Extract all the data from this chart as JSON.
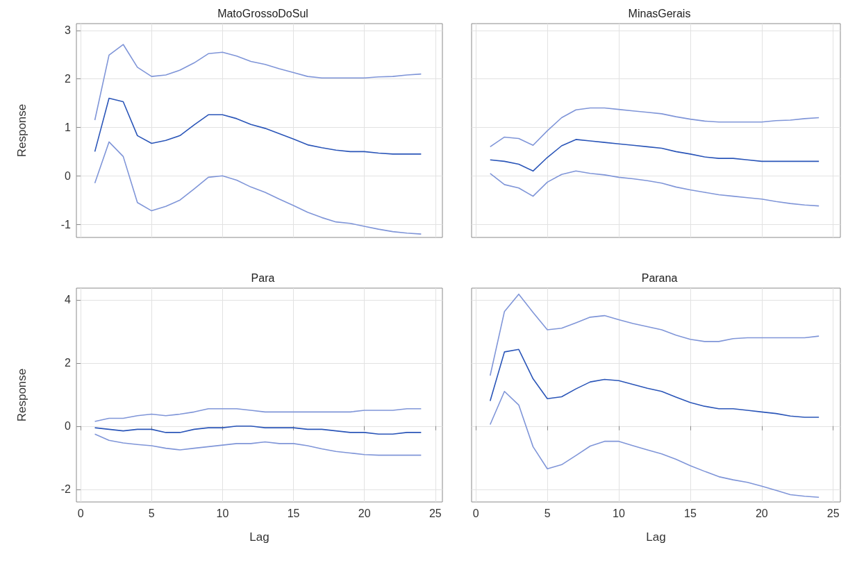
{
  "chart_data": [
    {
      "type": "line",
      "title": "MatoGrossoDoSul",
      "ylabel": "Response",
      "x": [
        1,
        2,
        3,
        4,
        5,
        6,
        7,
        8,
        9,
        10,
        11,
        12,
        13,
        14,
        15,
        16,
        17,
        18,
        19,
        20,
        21,
        22,
        23,
        24
      ],
      "xlim": [
        -0.3,
        25.5
      ],
      "xticks": [
        0,
        5,
        10,
        15,
        20,
        25
      ],
      "ylim": [
        -1.27,
        3.14
      ],
      "yticks": [
        -1,
        0,
        1,
        2,
        3
      ],
      "grid": true,
      "tick_labels": "y",
      "series": [
        {
          "color": "#2a55b8",
          "values": [
            0.5,
            1.6,
            1.53,
            0.83,
            0.67,
            0.73,
            0.83,
            1.05,
            1.26,
            1.26,
            1.18,
            1.06,
            0.98,
            0.87,
            0.76,
            0.64,
            0.58,
            0.53,
            0.5,
            0.5,
            0.47,
            0.45,
            0.45,
            0.45
          ]
        },
        {
          "color": "#7f95d8",
          "values": [
            1.15,
            2.49,
            2.71,
            2.24,
            2.05,
            2.08,
            2.18,
            2.33,
            2.52,
            2.55,
            2.47,
            2.36,
            2.3,
            2.21,
            2.13,
            2.05,
            2.02,
            2.02,
            2.02,
            2.02,
            2.04,
            2.05,
            2.08,
            2.1
          ]
        },
        {
          "color": "#7f95d8",
          "values": [
            -0.15,
            0.7,
            0.4,
            -0.55,
            -0.72,
            -0.63,
            -0.5,
            -0.27,
            -0.03,
            0,
            -0.09,
            -0.23,
            -0.34,
            -0.48,
            -0.61,
            -0.75,
            -0.86,
            -0.95,
            -0.98,
            -1.04,
            -1.1,
            -1.15,
            -1.18,
            -1.2
          ]
        }
      ]
    },
    {
      "type": "line",
      "title": "MinasGerais",
      "x": [
        1,
        2,
        3,
        4,
        5,
        6,
        7,
        8,
        9,
        10,
        11,
        12,
        13,
        14,
        15,
        16,
        17,
        18,
        19,
        20,
        21,
        22,
        23,
        24
      ],
      "xlim": [
        -0.3,
        25.5
      ],
      "xticks": [
        0,
        5,
        10,
        15,
        20,
        25
      ],
      "ylim": [
        -1.27,
        3.14
      ],
      "yticks": [
        -1,
        0,
        1,
        2,
        3
      ],
      "grid": true,
      "tick_labels": false,
      "series": [
        {
          "color": "#2a55b8",
          "values": [
            0.33,
            0.3,
            0.24,
            0.1,
            0.38,
            0.62,
            0.75,
            0.72,
            0.69,
            0.66,
            0.63,
            0.6,
            0.57,
            0.5,
            0.45,
            0.39,
            0.36,
            0.36,
            0.33,
            0.3,
            0.3,
            0.3,
            0.3,
            0.3
          ]
        },
        {
          "color": "#7f95d8",
          "values": [
            0.6,
            0.8,
            0.77,
            0.63,
            0.93,
            1.2,
            1.36,
            1.4,
            1.4,
            1.37,
            1.34,
            1.31,
            1.28,
            1.22,
            1.17,
            1.13,
            1.11,
            1.11,
            1.11,
            1.11,
            1.14,
            1.15,
            1.18,
            1.2
          ]
        },
        {
          "color": "#7f95d8",
          "values": [
            0.05,
            -0.18,
            -0.25,
            -0.42,
            -0.13,
            0.03,
            0.1,
            0.05,
            0.02,
            -0.03,
            -0.06,
            -0.1,
            -0.15,
            -0.23,
            -0.29,
            -0.34,
            -0.39,
            -0.42,
            -0.45,
            -0.48,
            -0.53,
            -0.57,
            -0.6,
            -0.62
          ]
        }
      ]
    },
    {
      "type": "line",
      "title": "Para",
      "xlabel": "Lag",
      "ylabel": "Response",
      "x": [
        1,
        2,
        3,
        4,
        5,
        6,
        7,
        8,
        9,
        10,
        11,
        12,
        13,
        14,
        15,
        16,
        17,
        18,
        19,
        20,
        21,
        22,
        23,
        24
      ],
      "xlim": [
        -0.3,
        25.5
      ],
      "xticks": [
        0,
        5,
        10,
        15,
        20,
        25
      ],
      "ylim": [
        -2.4,
        4.37
      ],
      "yticks": [
        -2,
        0,
        2,
        4
      ],
      "grid": true,
      "series": [
        {
          "color": "#2a55b8",
          "values": [
            -0.05,
            -0.1,
            -0.15,
            -0.1,
            -0.1,
            -0.2,
            -0.2,
            -0.1,
            -0.05,
            -0.05,
            0,
            0,
            -0.05,
            -0.05,
            -0.05,
            -0.1,
            -0.1,
            -0.15,
            -0.2,
            -0.2,
            -0.25,
            -0.25,
            -0.2,
            -0.2
          ]
        },
        {
          "color": "#7f95d8",
          "values": [
            0.15,
            0.25,
            0.25,
            0.33,
            0.38,
            0.33,
            0.38,
            0.45,
            0.55,
            0.55,
            0.55,
            0.5,
            0.45,
            0.45,
            0.45,
            0.45,
            0.45,
            0.45,
            0.45,
            0.5,
            0.5,
            0.5,
            0.55,
            0.55
          ]
        },
        {
          "color": "#7f95d8",
          "values": [
            -0.25,
            -0.45,
            -0.53,
            -0.58,
            -0.62,
            -0.7,
            -0.75,
            -0.7,
            -0.65,
            -0.6,
            -0.55,
            -0.55,
            -0.5,
            -0.55,
            -0.55,
            -0.62,
            -0.72,
            -0.8,
            -0.85,
            -0.9,
            -0.92,
            -0.92,
            -0.92,
            -0.92
          ]
        }
      ]
    },
    {
      "type": "line",
      "title": "Parana",
      "xlabel": "Lag",
      "x": [
        1,
        2,
        3,
        4,
        5,
        6,
        7,
        8,
        9,
        10,
        11,
        12,
        13,
        14,
        15,
        16,
        17,
        18,
        19,
        20,
        21,
        22,
        23,
        24
      ],
      "xlim": [
        -0.3,
        25.5
      ],
      "xticks": [
        0,
        5,
        10,
        15,
        20,
        25
      ],
      "ylim": [
        -2.4,
        4.37
      ],
      "yticks": [
        -2,
        0,
        2,
        4
      ],
      "grid": true,
      "tick_labels": "x",
      "series": [
        {
          "color": "#2a55b8",
          "values": [
            0.8,
            2.35,
            2.43,
            1.5,
            0.87,
            0.93,
            1.18,
            1.4,
            1.48,
            1.44,
            1.32,
            1.2,
            1.1,
            0.92,
            0.75,
            0.63,
            0.55,
            0.55,
            0.5,
            0.45,
            0.4,
            0.32,
            0.28,
            0.28
          ]
        },
        {
          "color": "#7f95d8",
          "values": [
            1.6,
            3.63,
            4.18,
            3.6,
            3.05,
            3.1,
            3.27,
            3.45,
            3.5,
            3.37,
            3.25,
            3.15,
            3.05,
            2.88,
            2.75,
            2.68,
            2.68,
            2.77,
            2.8,
            2.8,
            2.8,
            2.8,
            2.8,
            2.85
          ]
        },
        {
          "color": "#7f95d8",
          "values": [
            0.05,
            1.1,
            0.67,
            -0.65,
            -1.35,
            -1.22,
            -0.93,
            -0.63,
            -0.48,
            -0.48,
            -0.62,
            -0.75,
            -0.88,
            -1.05,
            -1.25,
            -1.43,
            -1.6,
            -1.7,
            -1.78,
            -1.9,
            -2.03,
            -2.17,
            -2.22,
            -2.25
          ]
        }
      ]
    }
  ]
}
